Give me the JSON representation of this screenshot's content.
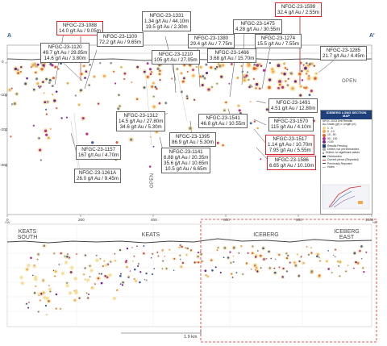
{
  "section_ends": {
    "left": "A",
    "right": "A'"
  },
  "top_axis": {
    "elevation_ticks": [
      "0",
      "-100",
      "-200",
      "-300"
    ],
    "distance_ticks": [
      "0",
      "200",
      "400",
      "600",
      "800",
      "1000"
    ]
  },
  "open_labels": {
    "top_right": "OPEN",
    "vertical": "OPEN"
  },
  "callouts": [
    {
      "hole": "NFGC-23-1088",
      "lines": [
        "14.0 g/t Au / 9.05m"
      ],
      "highlight": true
    },
    {
      "hole": "NFGC-23-1120",
      "lines": [
        "49.7 g/t Au / 29.85m",
        "14.6 g/t Au / 3.80m"
      ],
      "highlight": false
    },
    {
      "hole": "NFGC-23-1100",
      "lines": [
        "72.2 g/t Au / 9.65m"
      ],
      "highlight": false
    },
    {
      "hole": "NFGC-23-1331",
      "lines": [
        "1.34 g/t Au / 44.10m",
        "19.5 g/t Au / 2.30m"
      ],
      "highlight": false
    },
    {
      "hole": "NFGC-23-1210",
      "lines": [
        "105 g/t Au / 27.05m"
      ],
      "highlight": false
    },
    {
      "hole": "NFGC-23-1380",
      "lines": [
        "29.4 g/t Au / 7.75m"
      ],
      "highlight": false
    },
    {
      "hole": "NFGC-23-1475",
      "lines": [
        "4.28 g/t Au / 30.55m"
      ],
      "highlight": false
    },
    {
      "hole": "NFGC-23-1599",
      "lines": [
        "32.4 g/t Au / 2.55m"
      ],
      "highlight": true
    },
    {
      "hole": "NFGC-23-1274",
      "lines": [
        "15.5 g/t Au / 7.55m"
      ],
      "highlight": false
    },
    {
      "hole": "NFGC-23-1285",
      "lines": [
        "21.7 g/t Au / 4.45m"
      ],
      "highlight": false
    },
    {
      "hole": "NFGC-23-1466",
      "lines": [
        "3.68 g/t Au / 15.70m"
      ],
      "highlight": false
    },
    {
      "hole": "NFGC-23-1491",
      "lines": [
        "4.51 g/t Au / 12.80m"
      ],
      "highlight": false
    },
    {
      "hole": "NFGC-23-1312",
      "lines": [
        "14.5 g/t Au / 27.80m",
        "34.6 g/t Au / 5.30m"
      ],
      "highlight": false
    },
    {
      "hole": "NFGC-23-1541",
      "lines": [
        "46.8 g/t Au / 10.55m"
      ],
      "highlight": false
    },
    {
      "hole": "NFGC-23-1570",
      "lines": [
        "115 g/t Au / 4.10m"
      ],
      "highlight": false
    },
    {
      "hole": "NFGC-23-1395",
      "lines": [
        "86.9 g/t Au / 5.30m"
      ],
      "highlight": false
    },
    {
      "hole": "NFGC-23-1517",
      "lines": [
        "1.14 g/t Au / 10.70m",
        "7.95 g/t Au / 5.55m"
      ],
      "highlight": true
    },
    {
      "hole": "NFGC-23-1141",
      "lines": [
        "6.88 g/t Au / 20.35m",
        "35.6 g/t Au / 10.65m",
        "10.5 g/t Au / 6.65m"
      ],
      "highlight": false
    },
    {
      "hole": "NFGC-23-1157",
      "lines": [
        "167 g/t Au / 4.70m"
      ],
      "highlight": false
    },
    {
      "hole": "NFGC-23-1586",
      "lines": [
        "6.65 g/t Au / 10.10m"
      ],
      "highlight": true
    },
    {
      "hole": "NFGC-23-1261A",
      "lines": [
        "26.0 g/t Au / 9.45m"
      ],
      "highlight": false
    }
  ],
  "legend": {
    "title": "ICEBERG LONG SECTION MAP",
    "subtitle": "NFGC 2023 Drill Results",
    "grade_header": "Au Grade (g/t) x Length (m)",
    "grade_bins": [
      "1 - 5",
      "5 - 10",
      "10 - 50",
      "50 - 100",
      ">100"
    ],
    "symbols": [
      "Results Pending",
      "Drilled, not yet intersected",
      "Drilled, no significant values",
      "Overburden"
    ],
    "lines": [
      "Current pierce (Reported)",
      "Previously Reported",
      "Holes"
    ],
    "colors": {
      "low": "#f6d98a",
      "mid": "#f2a94d",
      "high": "#e2602b",
      "vhigh": "#b52f8e",
      "top": "#6b2a8c"
    }
  },
  "bottom": {
    "corner_left": "SW",
    "corner_right": "NE",
    "zones": [
      {
        "name": "KEATS SOUTH"
      },
      {
        "name": "KEATS"
      },
      {
        "name": "ICEBERG"
      },
      {
        "name": "ICEBERG EAST"
      }
    ],
    "distance_label": "1.9 km"
  }
}
